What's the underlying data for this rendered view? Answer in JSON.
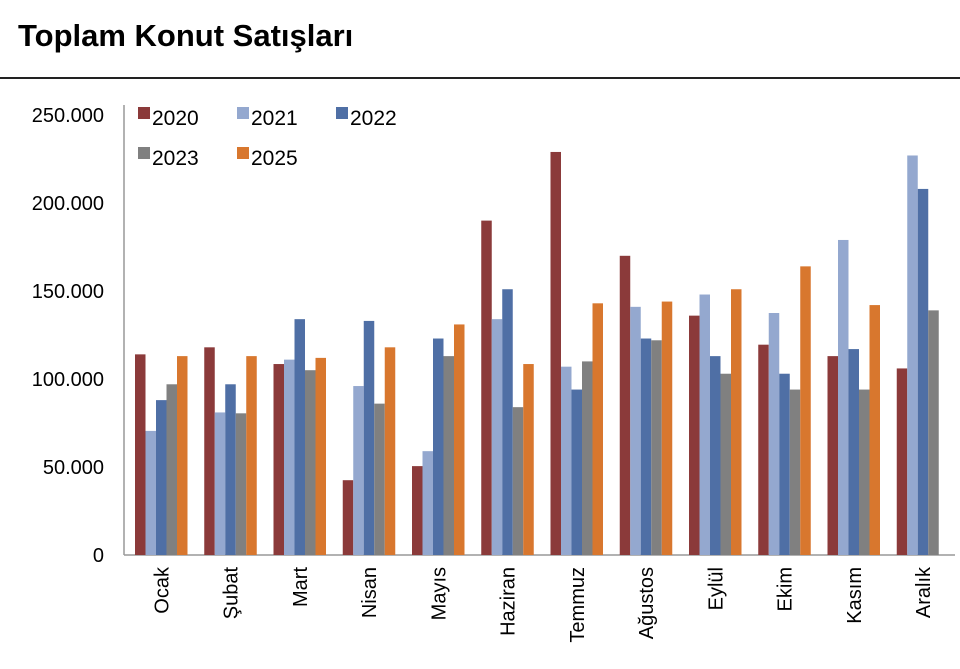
{
  "chart_data": {
    "type": "bar",
    "title": "Toplam Konut Satışları",
    "xlabel": "",
    "ylabel": "",
    "ylim": [
      0,
      250000
    ],
    "yticks": [
      0,
      50000,
      100000,
      150000,
      200000,
      250000
    ],
    "ytick_labels": [
      "0",
      "50.000",
      "100.000",
      "150.000",
      "200.000",
      "250.000"
    ],
    "grid": false,
    "legend_position": "top-left",
    "categories": [
      "Ocak",
      "Şubat",
      "Mart",
      "Nisan",
      "Mayıs",
      "Haziran",
      "Temmuz",
      "Ağustos",
      "Eylül",
      "Ekim",
      "Kasım",
      "Aralık"
    ],
    "series": [
      {
        "name": "2020",
        "color": "#8b3a3a",
        "values": [
          114000,
          118000,
          108500,
          42500,
          50500,
          190000,
          229000,
          170000,
          136000,
          119500,
          113000,
          106000
        ]
      },
      {
        "name": "2021",
        "color": "#94a8cf",
        "values": [
          70500,
          81000,
          111000,
          96000,
          59000,
          134000,
          107000,
          141000,
          148000,
          137500,
          179000,
          227000
        ]
      },
      {
        "name": "2022",
        "color": "#4f6fa5",
        "values": [
          88000,
          97000,
          134000,
          133000,
          123000,
          151000,
          94000,
          123000,
          113000,
          103000,
          117000,
          208000
        ]
      },
      {
        "name": "2023",
        "color": "#808080",
        "values": [
          97000,
          80500,
          105000,
          86000,
          113000,
          84000,
          110000,
          122000,
          103000,
          94000,
          94000,
          139000
        ]
      },
      {
        "name": "2025",
        "color": "#d8772e",
        "values": [
          113000,
          113000,
          112000,
          118000,
          131000,
          108500,
          143000,
          144000,
          151000,
          164000,
          142000,
          null
        ]
      }
    ]
  }
}
